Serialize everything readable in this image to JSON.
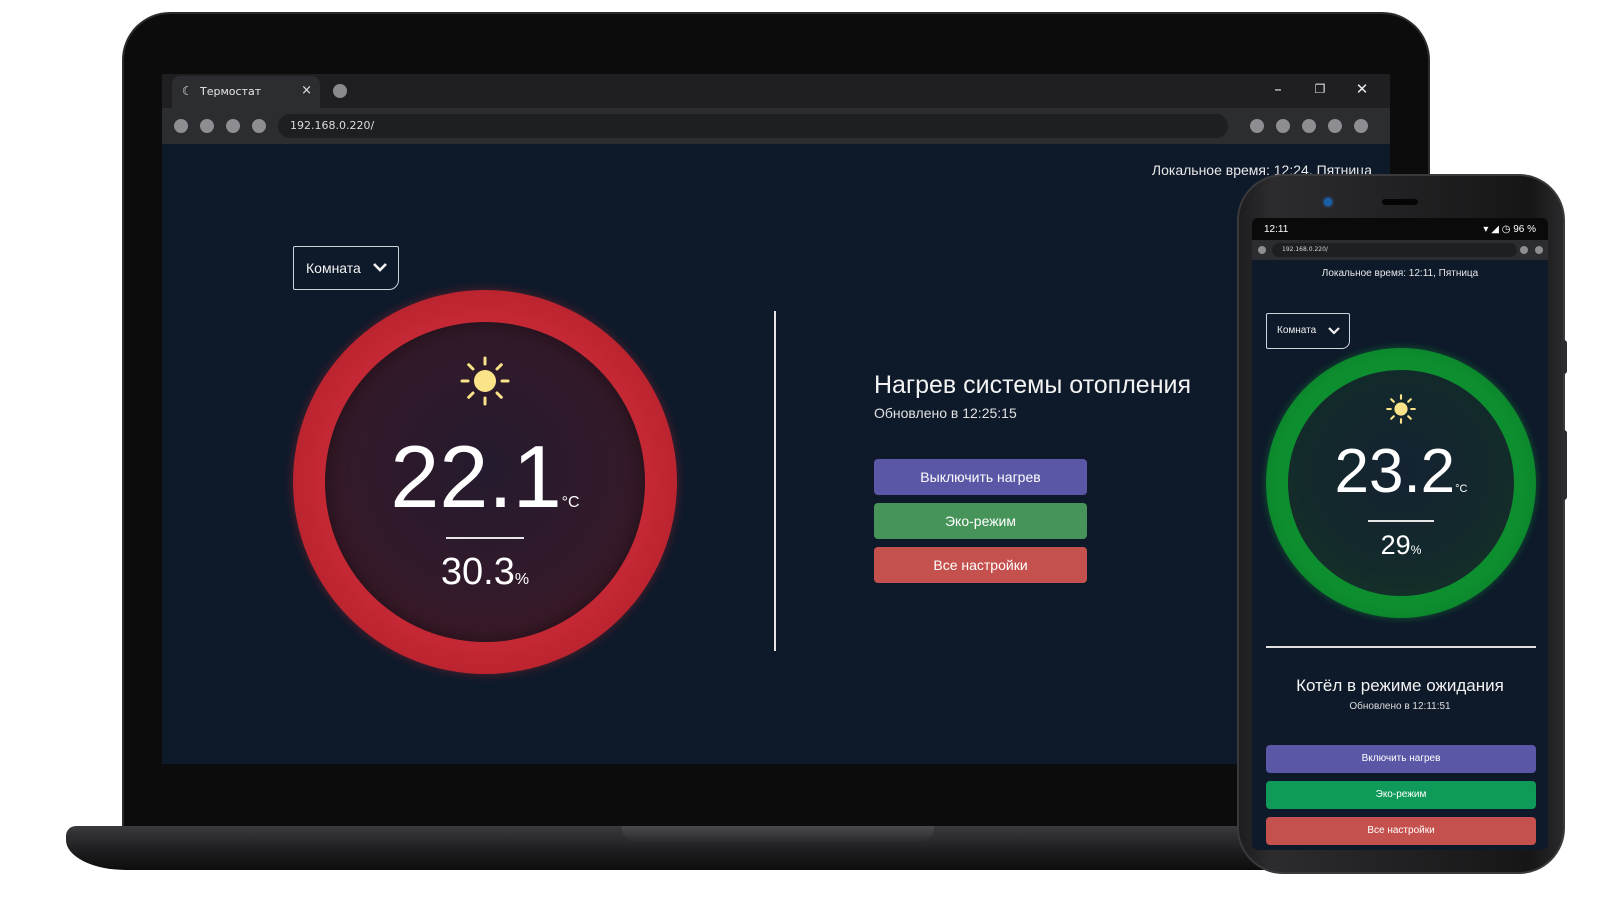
{
  "browser": {
    "tab_title": "Термостат",
    "tab_close": "×",
    "url": "192.168.0.220/"
  },
  "desktop": {
    "local_time": "Локальное время: 12:24, Пятница",
    "room_select": "Комната",
    "temperature": "22.1",
    "temperature_unit": "°C",
    "humidity": "30.3",
    "humidity_unit": "%",
    "dial_color": "#c72a36",
    "status_title": "Нагрев системы отопления",
    "status_updated": "Обновлено в 12:25:15",
    "buttons": [
      {
        "label": "Выключить нагрев",
        "color": "#5a57a6"
      },
      {
        "label": "Эко-режим",
        "color": "#46945a"
      },
      {
        "label": "Все настройки",
        "color": "#c5514e"
      }
    ]
  },
  "phone": {
    "status_time": "12:11",
    "status_battery": "96 %",
    "url": "192.168.0.220/",
    "local_time": "Локальное время: 12:11, Пятница",
    "room_select": "Комната",
    "temperature": "23.2",
    "temperature_unit": "°C",
    "humidity": "29",
    "humidity_unit": "%",
    "dial_color": "#0d8f2f",
    "status_title": "Котёл в режиме ожидания",
    "status_updated": "Обновлено в 12:11:51",
    "buttons": [
      {
        "label": "Включить нагрев",
        "color": "#5a57a6"
      },
      {
        "label": "Эко-режим",
        "color": "#0f9a5a"
      },
      {
        "label": "Все настройки",
        "color": "#c5514e"
      }
    ]
  }
}
